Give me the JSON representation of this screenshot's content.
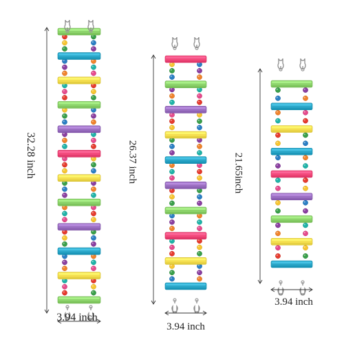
{
  "product": {
    "ladders": [
      {
        "id": "large",
        "height_label": "32.28 inch",
        "width_label": "3.94 inch",
        "rungs": [
          "#8cd36b",
          "#2aa6c8",
          "#f4de4f",
          "#8cd36b",
          "#9b6fc2",
          "#f2497b",
          "#f4de4f",
          "#8cd36b",
          "#9b6fc2",
          "#2aa6c8",
          "#f4de4f",
          "#8cd36b"
        ]
      },
      {
        "id": "medium",
        "height_label": "26.37 inch",
        "width_label": "3.94 inch",
        "rungs": [
          "#f2497b",
          "#8cd36b",
          "#9b6fc2",
          "#f4de4f",
          "#2aa6c8",
          "#9b6fc2",
          "#8cd36b",
          "#f2497b",
          "#f4de4f",
          "#2aa6c8"
        ]
      },
      {
        "id": "small",
        "height_label": "21.65inch",
        "width_label": "3.94 inch",
        "rungs": [
          "#8cd36b",
          "#2aa6c8",
          "#f4de4f",
          "#2aa6c8",
          "#f2497b",
          "#9b6fc2",
          "#8cd36b",
          "#f4de4f",
          "#2aa6c8"
        ]
      }
    ],
    "bead_colors": [
      "#e63b2e",
      "#f7c531",
      "#3a9f4a",
      "#2b7fc4",
      "#8a3fa0",
      "#f0832c",
      "#1fb3a8",
      "#e64b8c"
    ]
  }
}
